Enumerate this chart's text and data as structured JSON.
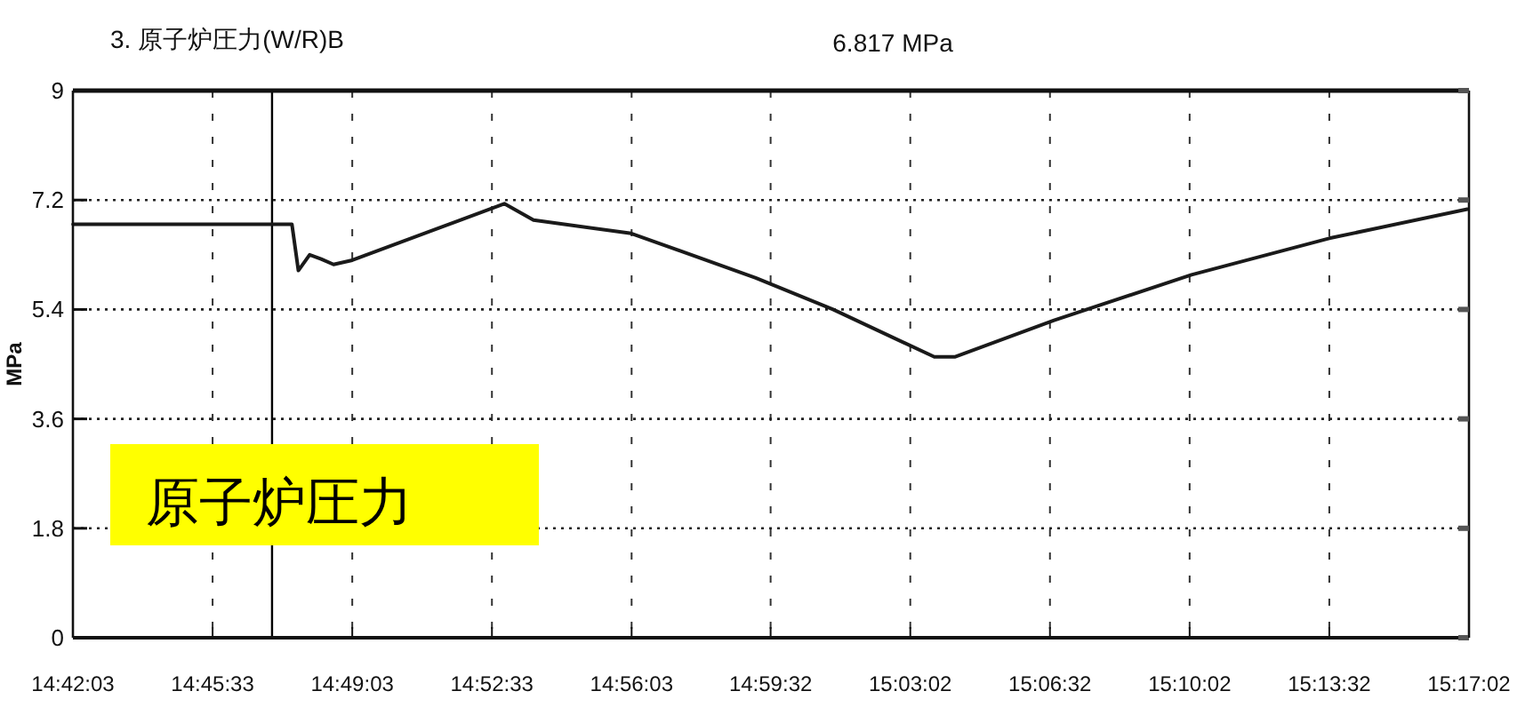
{
  "chart_data": {
    "type": "line",
    "title": "3. 原子炉圧力(W/R)B",
    "ylabel": "MPa",
    "annotations": [
      "6.817 MPa",
      "原子炉圧力"
    ],
    "x": [
      14.7009,
      14.7923,
      14.795,
      14.7997,
      14.8045,
      14.8097,
      14.8175,
      14.881,
      14.8932,
      14.934,
      14.986,
      15.0183,
      15.0606,
      15.0691,
      15.1106,
      15.168,
      15.2255,
      15.2832
    ],
    "series": [
      {
        "color": "#1a1a1a",
        "values": [
          6.8,
          6.8,
          6.04,
          6.3,
          6.23,
          6.14,
          6.21,
          7.14,
          6.87,
          6.65,
          5.92,
          5.4,
          4.62,
          4.62,
          5.22,
          5.97,
          6.57,
          7.05
        ]
      }
    ],
    "xlim": [
      14.700833,
      15.283889
    ],
    "xticks": [
      {
        "value": 14.700833,
        "label": "14:42:03"
      },
      {
        "value": 14.759167,
        "label": "14:45:33"
      },
      {
        "value": 14.8175,
        "label": "14:49:03"
      },
      {
        "value": 14.875833,
        "label": "14:52:33"
      },
      {
        "value": 14.934167,
        "label": "14:56:03"
      },
      {
        "value": 14.992222,
        "label": "14:59:32"
      },
      {
        "value": 15.050556,
        "label": "15:03:02"
      },
      {
        "value": 15.108889,
        "label": "15:06:32"
      },
      {
        "value": 15.167222,
        "label": "15:10:02"
      },
      {
        "value": 15.225556,
        "label": "15:13:32"
      },
      {
        "value": 15.283889,
        "label": "15:17:02"
      }
    ],
    "ylim": [
      0,
      9
    ],
    "yticks": [
      0,
      1.8,
      3.6,
      5.4,
      7.2,
      9
    ],
    "grid": true,
    "ref_lines": [
      {
        "axis": "x",
        "value": 14.784,
        "color": "#000000"
      }
    ]
  }
}
